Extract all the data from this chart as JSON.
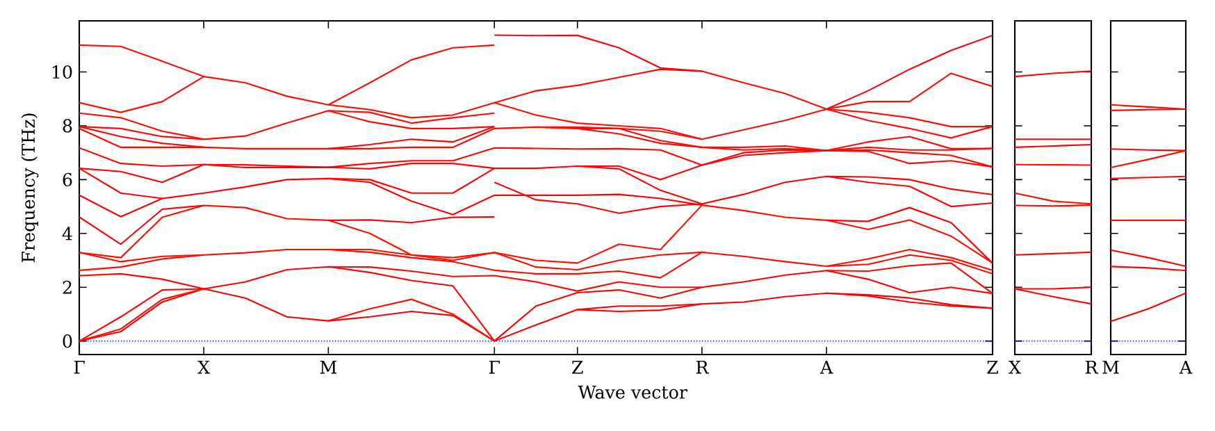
{
  "chart_data": [
    {
      "type": "line",
      "xlabel": "Wave vector",
      "ylabel": "Frequency (THz)",
      "categories": [
        "Γ",
        null,
        null,
        "X",
        null,
        null,
        "M",
        null,
        null,
        null,
        "Γ",
        null,
        "Z",
        null,
        null,
        "R",
        null,
        null,
        "A",
        null,
        null,
        null,
        "Z"
      ],
      "ylim": [
        -0.5,
        11.9
      ],
      "yticks": [
        0,
        2,
        4,
        6,
        8,
        10
      ],
      "ref_lines": [
        {
          "axis": "y",
          "value": 0,
          "color": "#0000ff",
          "line_style": "dotted"
        }
      ],
      "series": [
        {
          "color": "#ff0000",
          "values": [
            0,
            0.35,
            1.45,
            1.94,
            1.6,
            0.9,
            0.75,
            0.9,
            1.1,
            0.95,
            0,
            0.6,
            1.17,
            1.1,
            1.15,
            1.38,
            1.45,
            1.65,
            1.78,
            1.68,
            1.45,
            1.3,
            1.22
          ]
        },
        {
          "color": "#ff0300",
          "values": [
            0,
            0.9,
            1.9,
            1.94,
            2.2,
            2.65,
            2.76,
            2.55,
            2.25,
            2.05,
            0,
            1.3,
            1.8,
            1.9,
            1.6,
            2.0,
            2.2,
            2.45,
            2.62,
            2.3,
            1.8,
            2.0,
            1.77
          ]
        },
        {
          "color": "#ff0600",
          "values": [
            2.43,
            2.5,
            2.3,
            1.94,
            null,
            null,
            2.76,
            2.75,
            2.6,
            2.4,
            2.43,
            2.2,
            1.86,
            2.2,
            2.0,
            2.0,
            null,
            null,
            2.62,
            2.6,
            2.8,
            2.9,
            1.77
          ]
        },
        {
          "color": "#ff0900",
          "values": [
            2.63,
            2.75,
            3.05,
            3.2,
            3.28,
            3.4,
            3.4,
            3.3,
            3.1,
            2.95,
            2.63,
            2.5,
            2.5,
            2.6,
            2.35,
            3.3,
            3.15,
            2.95,
            2.78,
            2.85,
            3.2,
            3.0,
            2.5
          ]
        },
        {
          "color": "#ff0c00",
          "values": [
            3.29,
            2.95,
            3.15,
            3.2,
            null,
            null,
            3.4,
            3.4,
            3.2,
            3.0,
            3.29,
            2.75,
            2.65,
            3.0,
            3.2,
            3.3,
            null,
            null,
            2.78,
            3.05,
            3.4,
            3.1,
            2.63
          ]
        },
        {
          "color": "#ff0f00",
          "values": [
            3.29,
            3.1,
            4.6,
            5.04,
            4.96,
            4.55,
            4.49,
            4.0,
            3.2,
            3.1,
            3.29,
            3.0,
            2.9,
            3.6,
            3.4,
            5.05,
            4.85,
            4.6,
            4.49,
            4.15,
            4.5,
            3.9,
            2.9
          ]
        },
        {
          "color": "#ff0003",
          "values": [
            5.42,
            4.62,
            5.3,
            5.5,
            5.73,
            6.0,
            6.04,
            5.9,
            5.2,
            4.7,
            5.42,
            5.42,
            5.42,
            5.45,
            5.3,
            5.05,
            null,
            null,
            4.49,
            4.45,
            4.96,
            4.4,
            2.9
          ]
        },
        {
          "color": "#ff0303",
          "values": [
            6.42,
            5.5,
            5.3,
            null,
            null,
            null,
            6.04,
            6.0,
            5.5,
            5.5,
            6.42,
            6.42,
            6.5,
            6.4,
            5.6,
            5.1,
            null,
            null,
            6.12,
            6.1,
            6.0,
            5.65,
            5.44
          ]
        },
        {
          "color": "#ff0603",
          "values": [
            7.18,
            6.6,
            6.5,
            6.56,
            6.55,
            6.5,
            6.46,
            6.6,
            6.7,
            6.7,
            7.18,
            7.16,
            7.14,
            7.15,
            7.1,
            6.54,
            7.0,
            7.1,
            7.08,
            7.1,
            7.0,
            6.9,
            6.47
          ]
        },
        {
          "color": "#ff0903",
          "values": [
            7.9,
            7.2,
            7.2,
            7.2,
            7.15,
            7.15,
            7.15,
            7.15,
            7.2,
            7.2,
            7.9,
            7.95,
            7.9,
            7.7,
            7.35,
            7.2,
            7.1,
            7.15,
            7.08,
            7.2,
            7.1,
            7.1,
            7.16
          ]
        },
        {
          "color": "#ff0c03",
          "values": [
            8.86,
            8.5,
            8.9,
            9.83,
            9.6,
            9.1,
            8.78,
            8.6,
            8.3,
            8.4,
            8.86,
            9.3,
            9.5,
            9.8,
            10.1,
            10.03,
            9.6,
            9.2,
            8.62,
            8.9,
            8.9,
            9.95,
            9.46
          ]
        },
        {
          "color": "#ff0f03",
          "values": [
            0,
            0.45,
            1.55,
            1.94,
            null,
            null,
            0.75,
            1.2,
            1.55,
            1.0,
            0,
            null,
            null,
            null,
            null,
            null,
            null,
            null,
            null,
            null,
            null,
            null,
            null
          ]
        },
        {
          "color": "#ff0006",
          "values": [
            4.61,
            3.6,
            4.9,
            5.04,
            null,
            null,
            4.49,
            4.5,
            4.4,
            4.6,
            4.61,
            null,
            null,
            null,
            null,
            null,
            null,
            null,
            null,
            null,
            null,
            null,
            null
          ]
        },
        {
          "color": "#ff0306",
          "values": [
            6.42,
            6.3,
            5.9,
            6.56,
            6.45,
            6.45,
            6.46,
            6.4,
            6.6,
            6.6,
            6.42,
            null,
            null,
            null,
            null,
            null,
            null,
            null,
            null,
            null,
            null,
            null,
            null
          ]
        },
        {
          "color": "#ff0606",
          "values": [
            7.97,
            7.6,
            7.35,
            7.2,
            null,
            null,
            7.15,
            7.3,
            7.5,
            7.4,
            7.97,
            null,
            null,
            null,
            null,
            null,
            null,
            null,
            null,
            null,
            null,
            null,
            null
          ]
        },
        {
          "color": "#ff0906",
          "values": [
            7.97,
            7.9,
            7.6,
            7.5,
            7.62,
            8.1,
            8.56,
            8.15,
            7.9,
            7.9,
            7.97,
            null,
            null,
            null,
            null,
            null,
            null,
            null,
            null,
            null,
            null,
            null,
            null
          ]
        },
        {
          "color": "#ff0c06",
          "values": [
            8.47,
            8.3,
            7.8,
            7.5,
            null,
            null,
            8.56,
            8.5,
            8.1,
            8.3,
            8.47,
            null,
            null,
            null,
            null,
            null,
            null,
            null,
            null,
            null,
            null,
            null,
            null
          ]
        },
        {
          "color": "#ff0f06",
          "values": [
            11.0,
            10.95,
            10.4,
            9.83,
            null,
            null,
            8.78,
            9.6,
            10.45,
            10.9,
            11.0,
            null,
            null,
            null,
            null,
            null,
            null,
            null,
            null,
            null,
            null,
            null,
            null
          ]
        },
        {
          "color": "#ff0009",
          "values": [
            null,
            null,
            null,
            null,
            null,
            null,
            null,
            null,
            null,
            null,
            null,
            null,
            1.17,
            1.3,
            1.3,
            1.38,
            null,
            null,
            1.78,
            1.72,
            1.6,
            1.35,
            1.22
          ]
        },
        {
          "color": "#ff0309",
          "values": [
            null,
            null,
            null,
            null,
            null,
            null,
            null,
            null,
            null,
            null,
            5.9,
            5.25,
            5.1,
            4.75,
            5.0,
            5.1,
            5.45,
            5.9,
            6.12,
            5.9,
            5.75,
            5.0,
            5.13
          ]
        },
        {
          "color": "#ff0609",
          "values": [
            null,
            null,
            null,
            null,
            null,
            null,
            null,
            null,
            null,
            null,
            null,
            null,
            6.5,
            6.5,
            6.0,
            6.54,
            6.9,
            7.0,
            7.08,
            7.05,
            6.6,
            6.7,
            6.47
          ]
        },
        {
          "color": "#ff0909",
          "values": [
            null,
            null,
            null,
            null,
            null,
            null,
            null,
            null,
            null,
            null,
            null,
            null,
            7.9,
            7.9,
            7.45,
            7.2,
            7.2,
            7.25,
            7.08,
            7.4,
            7.6,
            7.15,
            7.16
          ]
        },
        {
          "color": "#ff0c09",
          "values": [
            null,
            null,
            null,
            null,
            null,
            null,
            null,
            null,
            null,
            null,
            null,
            7.95,
            7.95,
            7.9,
            7.8,
            7.5,
            7.85,
            8.2,
            8.62,
            8.2,
            7.9,
            7.55,
            7.97
          ]
        },
        {
          "color": "#ff0f09",
          "values": [
            null,
            null,
            null,
            null,
            null,
            null,
            null,
            null,
            null,
            null,
            8.86,
            8.4,
            8.1,
            8.0,
            7.9,
            7.5,
            null,
            null,
            8.62,
            8.5,
            8.3,
            7.97,
            7.97
          ]
        },
        {
          "color": "#ff000c",
          "values": [
            null,
            null,
            null,
            null,
            null,
            null,
            null,
            null,
            null,
            null,
            11.37,
            11.35,
            11.36,
            10.9,
            10.15,
            10.03,
            null,
            null,
            8.62,
            9.3,
            10.1,
            10.8,
            11.36
          ]
        }
      ]
    },
    {
      "type": "line",
      "categories": [
        "X",
        null,
        "R"
      ],
      "ylim": [
        -0.5,
        11.9
      ],
      "yticks": [
        0,
        2,
        4,
        6,
        8,
        10
      ],
      "tick_labels": "x",
      "ref_lines": [
        {
          "axis": "y",
          "value": 0,
          "color": "#0000ff",
          "line_style": "dotted"
        }
      ],
      "series": [
        {
          "color": "#ff0000",
          "values": [
            1.94,
            1.65,
            1.38
          ]
        },
        {
          "color": "#ff0300",
          "values": [
            1.94,
            1.94,
            2.0
          ]
        },
        {
          "color": "#ff0600",
          "values": [
            3.2,
            3.25,
            3.3
          ]
        },
        {
          "color": "#ff0900",
          "values": [
            5.04,
            5.02,
            5.05
          ]
        },
        {
          "color": "#ff0c00",
          "values": [
            5.5,
            5.2,
            5.1
          ]
        },
        {
          "color": "#ff0f00",
          "values": [
            6.56,
            6.55,
            6.54
          ]
        },
        {
          "color": "#ff0003",
          "values": [
            7.2,
            7.25,
            7.3
          ]
        },
        {
          "color": "#ff0303",
          "values": [
            7.5,
            7.5,
            7.5
          ]
        },
        {
          "color": "#ff0603",
          "values": [
            9.83,
            9.95,
            10.03
          ]
        }
      ]
    },
    {
      "type": "line",
      "categories": [
        "M",
        null,
        "A"
      ],
      "ylim": [
        -0.5,
        11.9
      ],
      "yticks": [
        0,
        2,
        4,
        6,
        8,
        10
      ],
      "tick_labels": "x",
      "ref_lines": [
        {
          "axis": "y",
          "value": 0,
          "color": "#0000ff",
          "line_style": "dotted"
        }
      ],
      "series": [
        {
          "color": "#ff0000",
          "values": [
            0.73,
            1.2,
            1.78
          ]
        },
        {
          "color": "#ff0300",
          "values": [
            2.77,
            2.72,
            2.62
          ]
        },
        {
          "color": "#ff0600",
          "values": [
            3.38,
            3.1,
            2.78
          ]
        },
        {
          "color": "#ff0900",
          "values": [
            4.49,
            4.49,
            4.49
          ]
        },
        {
          "color": "#ff0c00",
          "values": [
            6.04,
            6.08,
            6.12
          ]
        },
        {
          "color": "#ff0f00",
          "values": [
            6.45,
            6.75,
            7.08
          ]
        },
        {
          "color": "#ff0003",
          "values": [
            7.14,
            7.1,
            7.08
          ]
        },
        {
          "color": "#ff0303",
          "values": [
            8.57,
            8.6,
            8.62
          ]
        },
        {
          "color": "#ff0603",
          "values": [
            8.78,
            8.7,
            8.62
          ]
        }
      ]
    }
  ]
}
